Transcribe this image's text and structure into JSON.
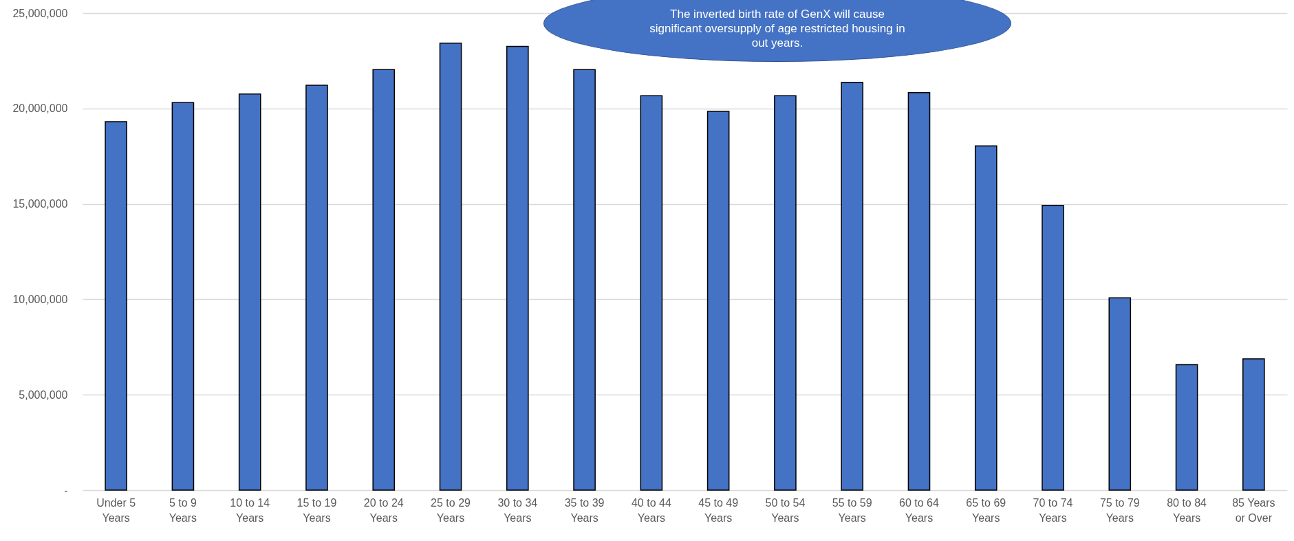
{
  "chart_data": {
    "type": "bar",
    "categories": [
      "Under 5 Years",
      "5 to 9 Years",
      "10 to 14 Years",
      "15 to 19 Years",
      "20 to 24 Years",
      "25 to 29 Years",
      "30 to 34 Years",
      "35 to 39 Years",
      "40 to 44 Years",
      "45 to 49 Years",
      "50 to 54 Years",
      "55 to 59 Years",
      "60 to 64 Years",
      "65 to 69 Years",
      "70 to 74 Years",
      "75 to 79 Years",
      "80 to 84 Years",
      "85 Years or Over"
    ],
    "values": [
      19310000,
      20310000,
      20760000,
      21220000,
      22040000,
      23420000,
      23250000,
      22040000,
      20670000,
      19850000,
      20670000,
      21370000,
      20830000,
      18040000,
      14920000,
      10080000,
      6570000,
      6880000
    ],
    "color": "#4472c4",
    "ylim": [
      0,
      25000000
    ],
    "yticks": [
      {
        "value": 0,
        "label": "-"
      },
      {
        "value": 5000000,
        "label": "5,000,000"
      },
      {
        "value": 10000000,
        "label": "10,000,000"
      },
      {
        "value": 15000000,
        "label": "15,000,000"
      },
      {
        "value": 20000000,
        "label": "20,000,000"
      },
      {
        "value": 25000000,
        "label": "25,000,000"
      }
    ],
    "grid": "y",
    "annotations": [
      "The inverted birth rate of GenX will cause significant oversupply of age restricted housing in out years."
    ]
  }
}
